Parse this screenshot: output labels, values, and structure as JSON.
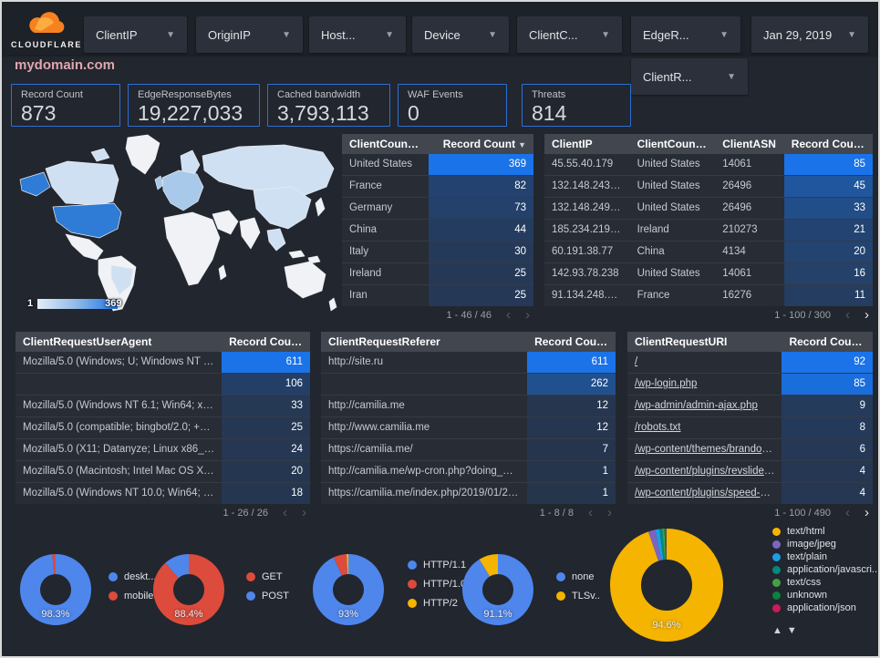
{
  "brand": {
    "name": "CLOUDFLARE",
    "logo_color": "#f6821f",
    "logo_light": "#fbad41"
  },
  "page_title": "mydomain.com",
  "filters": [
    {
      "label": "ClientIP"
    },
    {
      "label": "OriginIP"
    },
    {
      "label": "Host..."
    },
    {
      "label": "Device"
    },
    {
      "label": "ClientC..."
    },
    {
      "label": "EdgeR..."
    },
    {
      "label": "Jan 29, 2019"
    },
    {
      "label": "ClientR..."
    }
  ],
  "scorecards": [
    {
      "label": "Record Count",
      "value": "873"
    },
    {
      "label": "EdgeResponseBytes",
      "value": "19,227,033"
    },
    {
      "label": "Cached bandwidth",
      "value": "3,793,113"
    },
    {
      "label": "WAF Events",
      "value": "0"
    },
    {
      "label": "Threats",
      "value": "814"
    }
  ],
  "map": {
    "legend_min": "1",
    "legend_max": "369",
    "palette": {
      "none": "#f0f2f5",
      "low": "#cfe0f2",
      "mid": "#a9c9ea",
      "high": "#2e7cd6"
    },
    "regions": [
      {
        "id": "greenland",
        "level": "none"
      },
      {
        "id": "canada",
        "level": "low"
      },
      {
        "id": "alaska",
        "level": "high"
      },
      {
        "id": "usa",
        "level": "high"
      },
      {
        "id": "mexico",
        "level": "none"
      },
      {
        "id": "southamerica",
        "level": "none"
      },
      {
        "id": "brazil",
        "level": "low"
      },
      {
        "id": "europe",
        "level": "mid"
      },
      {
        "id": "uk",
        "level": "mid"
      },
      {
        "id": "scandinavia",
        "level": "low"
      },
      {
        "id": "russia",
        "level": "low"
      },
      {
        "id": "africa",
        "level": "none"
      },
      {
        "id": "madagascar",
        "level": "none"
      },
      {
        "id": "mideast",
        "level": "none"
      },
      {
        "id": "india",
        "level": "none"
      },
      {
        "id": "china",
        "level": "low"
      },
      {
        "id": "seasia",
        "level": "low"
      },
      {
        "id": "indonesia",
        "level": "none"
      },
      {
        "id": "japan",
        "level": "none"
      },
      {
        "id": "australia",
        "level": "none"
      },
      {
        "id": "newzealand",
        "level": "none"
      }
    ]
  },
  "heat_color": "#1a73e8",
  "tables": {
    "country": {
      "columns": [
        "ClientCountry",
        "Record Count"
      ],
      "rows": [
        [
          "United States",
          369
        ],
        [
          "France",
          82
        ],
        [
          "Germany",
          73
        ],
        [
          "China",
          44
        ],
        [
          "Italy",
          30
        ],
        [
          "Ireland",
          25
        ],
        [
          "Iran",
          25
        ]
      ],
      "max": 369,
      "pagination": "1 - 46 / 46",
      "prev_enabled": false,
      "next_enabled": false,
      "link": false
    },
    "ip": {
      "columns": [
        "ClientIP",
        "ClientCountry",
        "ClientASN",
        "Record Count"
      ],
      "rows": [
        [
          "45.55.40.179",
          "United States",
          "14061",
          85
        ],
        [
          "132.148.243.238",
          "United States",
          "26496",
          45
        ],
        [
          "132.148.249.210",
          "United States",
          "26496",
          33
        ],
        [
          "185.234.219.70",
          "Ireland",
          "210273",
          21
        ],
        [
          "60.191.38.77",
          "China",
          "4134",
          20
        ],
        [
          "142.93.78.238",
          "United States",
          "14061",
          16
        ],
        [
          "91.134.248.235",
          "France",
          "16276",
          11
        ]
      ],
      "max": 85,
      "pagination": "1 - 100 / 300",
      "prev_enabled": false,
      "next_enabled": true,
      "link": false
    },
    "useragent": {
      "columns": [
        "ClientRequestUserAgent",
        "Record Count"
      ],
      "rows": [
        [
          "Mozilla/5.0 (Windows; U; Windows NT 5.1; en-U...",
          611
        ],
        [
          "",
          106
        ],
        [
          "Mozilla/5.0 (Windows NT 6.1; Win64; x64; rv:64...",
          33
        ],
        [
          "Mozilla/5.0 (compatible; bingbot/2.0; +http://w...",
          25
        ],
        [
          "Mozilla/5.0 (X11; Datanyze; Linux x86_64) Appl...",
          24
        ],
        [
          "Mozilla/5.0 (Macintosh; Intel Mac OS X 10.11; r...",
          20
        ],
        [
          "Mozilla/5.0 (Windows NT 10.0; Win64; x64) App...",
          18
        ]
      ],
      "max": 611,
      "pagination": "1 - 26 / 26",
      "prev_enabled": false,
      "next_enabled": false,
      "link": false
    },
    "referer": {
      "columns": [
        "ClientRequestReferer",
        "Record Count"
      ],
      "rows": [
        [
          "http://site.ru",
          611
        ],
        [
          "",
          262
        ],
        [
          "http://camilia.me",
          12
        ],
        [
          "http://www.camilia.me",
          12
        ],
        [
          "https://camilia.me/",
          7
        ],
        [
          "http://camilia.me/wp-cron.php?doing_wp_cron...",
          1
        ],
        [
          "https://camilia.me/index.php/2019/01/26/stor...",
          1
        ]
      ],
      "max": 611,
      "pagination": "1 - 8 / 8",
      "prev_enabled": false,
      "next_enabled": false,
      "link": false
    },
    "uri": {
      "columns": [
        "ClientRequestURI",
        "Record Count"
      ],
      "rows": [
        [
          "/",
          92
        ],
        [
          "/wp-login.php",
          85
        ],
        [
          "/wp-admin/admin-ajax.php",
          9
        ],
        [
          "/robots.txt",
          8
        ],
        [
          "/wp-content/themes/brandon/plu...",
          6
        ],
        [
          "/wp-content/plugins/revslider/rs-p...",
          4
        ],
        [
          "/wp-content/plugins/speed-booste...",
          4
        ]
      ],
      "max": 92,
      "pagination": "1 - 100 / 490",
      "prev_enabled": false,
      "next_enabled": true,
      "link": true
    }
  },
  "donuts": [
    {
      "name": "device-type",
      "percent_label": "98.3%",
      "slices": [
        {
          "label": "deskt...",
          "value": 98.3,
          "color": "#4e86ec"
        },
        {
          "label": "mobile",
          "value": 1.7,
          "color": "#dc4b3c"
        }
      ]
    },
    {
      "name": "http-method",
      "percent_label": "88.4%",
      "slices": [
        {
          "label": "GET",
          "value": 88.4,
          "color": "#dc4b3c"
        },
        {
          "label": "POST",
          "value": 11.6,
          "color": "#4e86ec"
        }
      ]
    },
    {
      "name": "http-protocol",
      "percent_label": "93%",
      "slices": [
        {
          "label": "HTTP/1.1",
          "value": 93,
          "color": "#4e86ec"
        },
        {
          "label": "HTTP/1.0",
          "value": 6,
          "color": "#dc4b3c"
        },
        {
          "label": "HTTP/2",
          "value": 1,
          "color": "#f5b400"
        }
      ]
    },
    {
      "name": "tls-version",
      "percent_label": "91.1%",
      "slices": [
        {
          "label": "none",
          "value": 91.1,
          "color": "#4e86ec"
        },
        {
          "label": "TLSv..",
          "value": 8.9,
          "color": "#f5b400"
        }
      ]
    },
    {
      "name": "content-type",
      "percent_label": "94.6%",
      "slices": [
        {
          "label": "text/html",
          "value": 94.6,
          "color": "#f5b400"
        },
        {
          "label": "image/jpeg",
          "value": 2.0,
          "color": "#7c65c0"
        },
        {
          "label": "text/plain",
          "value": 1.2,
          "color": "#1a9ee5"
        },
        {
          "label": "application/javascri...",
          "value": 0.8,
          "color": "#00897b"
        },
        {
          "label": "text/css",
          "value": 0.6,
          "color": "#43a047"
        },
        {
          "label": "unknown",
          "value": 0.5,
          "color": "#0b8043"
        },
        {
          "label": "application/json",
          "value": 0.3,
          "color": "#d01958"
        }
      ]
    }
  ]
}
